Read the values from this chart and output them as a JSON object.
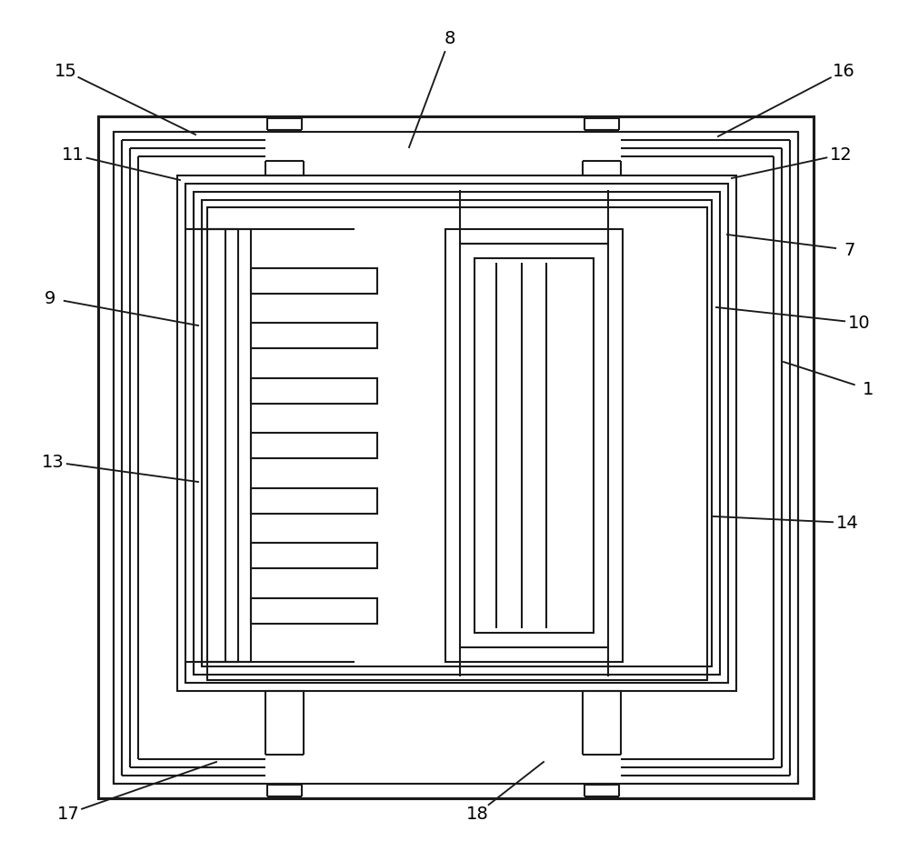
{
  "bg": "#ffffff",
  "lc": "#1a1a1a",
  "lw": 1.5,
  "fig_w": 10.0,
  "fig_h": 9.47,
  "annotations": [
    [
      "15",
      72,
      78,
      215,
      148
    ],
    [
      "8",
      495,
      42,
      450,
      162
    ],
    [
      "16",
      928,
      78,
      790,
      150
    ],
    [
      "11",
      80,
      170,
      198,
      198
    ],
    [
      "12",
      925,
      170,
      805,
      196
    ],
    [
      "7",
      935,
      275,
      800,
      258
    ],
    [
      "9",
      55,
      328,
      218,
      358
    ],
    [
      "10",
      945,
      355,
      788,
      338
    ],
    [
      "1",
      955,
      428,
      862,
      398
    ],
    [
      "13",
      58,
      508,
      218,
      530
    ],
    [
      "14",
      932,
      575,
      785,
      568
    ],
    [
      "17",
      75,
      895,
      238,
      838
    ],
    [
      "18",
      525,
      895,
      598,
      838
    ]
  ]
}
